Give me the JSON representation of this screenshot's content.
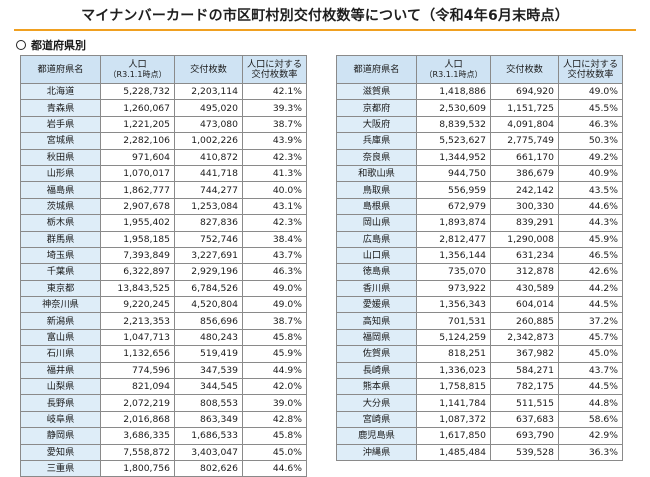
{
  "title": "マイナンバーカードの市区町村別交付枚数等について（令和4年6月末時点）",
  "section": "都道府県別",
  "headers": {
    "prefecture": "都道府県名",
    "population": "人口",
    "population_sub": "（R3.1.1時点）",
    "issued": "交付枚数",
    "rate_line1": "人口に対する",
    "rate_line2": "交付枚数率"
  },
  "left_rows": [
    {
      "name": "北海道",
      "pop": "5,228,732",
      "issued": "2,203,114",
      "rate": "42.1%"
    },
    {
      "name": "青森県",
      "pop": "1,260,067",
      "issued": "495,020",
      "rate": "39.3%"
    },
    {
      "name": "岩手県",
      "pop": "1,221,205",
      "issued": "473,080",
      "rate": "38.7%"
    },
    {
      "name": "宮城県",
      "pop": "2,282,106",
      "issued": "1,002,226",
      "rate": "43.9%"
    },
    {
      "name": "秋田県",
      "pop": "971,604",
      "issued": "410,872",
      "rate": "42.3%"
    },
    {
      "name": "山形県",
      "pop": "1,070,017",
      "issued": "441,718",
      "rate": "41.3%"
    },
    {
      "name": "福島県",
      "pop": "1,862,777",
      "issued": "744,277",
      "rate": "40.0%"
    },
    {
      "name": "茨城県",
      "pop": "2,907,678",
      "issued": "1,253,084",
      "rate": "43.1%"
    },
    {
      "name": "栃木県",
      "pop": "1,955,402",
      "issued": "827,836",
      "rate": "42.3%"
    },
    {
      "name": "群馬県",
      "pop": "1,958,185",
      "issued": "752,746",
      "rate": "38.4%"
    },
    {
      "name": "埼玉県",
      "pop": "7,393,849",
      "issued": "3,227,691",
      "rate": "43.7%"
    },
    {
      "name": "千葉県",
      "pop": "6,322,897",
      "issued": "2,929,196",
      "rate": "46.3%"
    },
    {
      "name": "東京都",
      "pop": "13,843,525",
      "issued": "6,784,526",
      "rate": "49.0%"
    },
    {
      "name": "神奈川県",
      "pop": "9,220,245",
      "issued": "4,520,804",
      "rate": "49.0%"
    },
    {
      "name": "新潟県",
      "pop": "2,213,353",
      "issued": "856,696",
      "rate": "38.7%"
    },
    {
      "name": "富山県",
      "pop": "1,047,713",
      "issued": "480,243",
      "rate": "45.8%"
    },
    {
      "name": "石川県",
      "pop": "1,132,656",
      "issued": "519,419",
      "rate": "45.9%"
    },
    {
      "name": "福井県",
      "pop": "774,596",
      "issued": "347,539",
      "rate": "44.9%"
    },
    {
      "name": "山梨県",
      "pop": "821,094",
      "issued": "344,545",
      "rate": "42.0%"
    },
    {
      "name": "長野県",
      "pop": "2,072,219",
      "issued": "808,553",
      "rate": "39.0%"
    },
    {
      "name": "岐阜県",
      "pop": "2,016,868",
      "issued": "863,349",
      "rate": "42.8%"
    },
    {
      "name": "静岡県",
      "pop": "3,686,335",
      "issued": "1,686,533",
      "rate": "45.8%"
    },
    {
      "name": "愛知県",
      "pop": "7,558,872",
      "issued": "3,403,047",
      "rate": "45.0%"
    },
    {
      "name": "三重県",
      "pop": "1,800,756",
      "issued": "802,626",
      "rate": "44.6%"
    }
  ],
  "right_rows": [
    {
      "name": "滋賀県",
      "pop": "1,418,886",
      "issued": "694,920",
      "rate": "49.0%"
    },
    {
      "name": "京都府",
      "pop": "2,530,609",
      "issued": "1,151,725",
      "rate": "45.5%"
    },
    {
      "name": "大阪府",
      "pop": "8,839,532",
      "issued": "4,091,804",
      "rate": "46.3%"
    },
    {
      "name": "兵庫県",
      "pop": "5,523,627",
      "issued": "2,775,749",
      "rate": "50.3%"
    },
    {
      "name": "奈良県",
      "pop": "1,344,952",
      "issued": "661,170",
      "rate": "49.2%"
    },
    {
      "name": "和歌山県",
      "pop": "944,750",
      "issued": "386,679",
      "rate": "40.9%"
    },
    {
      "name": "鳥取県",
      "pop": "556,959",
      "issued": "242,142",
      "rate": "43.5%"
    },
    {
      "name": "島根県",
      "pop": "672,979",
      "issued": "300,330",
      "rate": "44.6%"
    },
    {
      "name": "岡山県",
      "pop": "1,893,874",
      "issued": "839,291",
      "rate": "44.3%"
    },
    {
      "name": "広島県",
      "pop": "2,812,477",
      "issued": "1,290,008",
      "rate": "45.9%"
    },
    {
      "name": "山口県",
      "pop": "1,356,144",
      "issued": "631,234",
      "rate": "46.5%"
    },
    {
      "name": "徳島県",
      "pop": "735,070",
      "issued": "312,878",
      "rate": "42.6%"
    },
    {
      "name": "香川県",
      "pop": "973,922",
      "issued": "430,589",
      "rate": "44.2%"
    },
    {
      "name": "愛媛県",
      "pop": "1,356,343",
      "issued": "604,014",
      "rate": "44.5%"
    },
    {
      "name": "高知県",
      "pop": "701,531",
      "issued": "260,885",
      "rate": "37.2%"
    },
    {
      "name": "福岡県",
      "pop": "5,124,259",
      "issued": "2,342,873",
      "rate": "45.7%"
    },
    {
      "name": "佐賀県",
      "pop": "818,251",
      "issued": "367,982",
      "rate": "45.0%"
    },
    {
      "name": "長崎県",
      "pop": "1,336,023",
      "issued": "584,271",
      "rate": "43.7%"
    },
    {
      "name": "熊本県",
      "pop": "1,758,815",
      "issued": "782,175",
      "rate": "44.5%"
    },
    {
      "name": "大分県",
      "pop": "1,141,784",
      "issued": "511,515",
      "rate": "44.8%"
    },
    {
      "name": "宮崎県",
      "pop": "1,087,372",
      "issued": "637,683",
      "rate": "58.6%"
    },
    {
      "name": "鹿児島県",
      "pop": "1,617,850",
      "issued": "693,790",
      "rate": "42.9%"
    },
    {
      "name": "沖縄県",
      "pop": "1,485,484",
      "issued": "539,528",
      "rate": "36.3%"
    }
  ]
}
